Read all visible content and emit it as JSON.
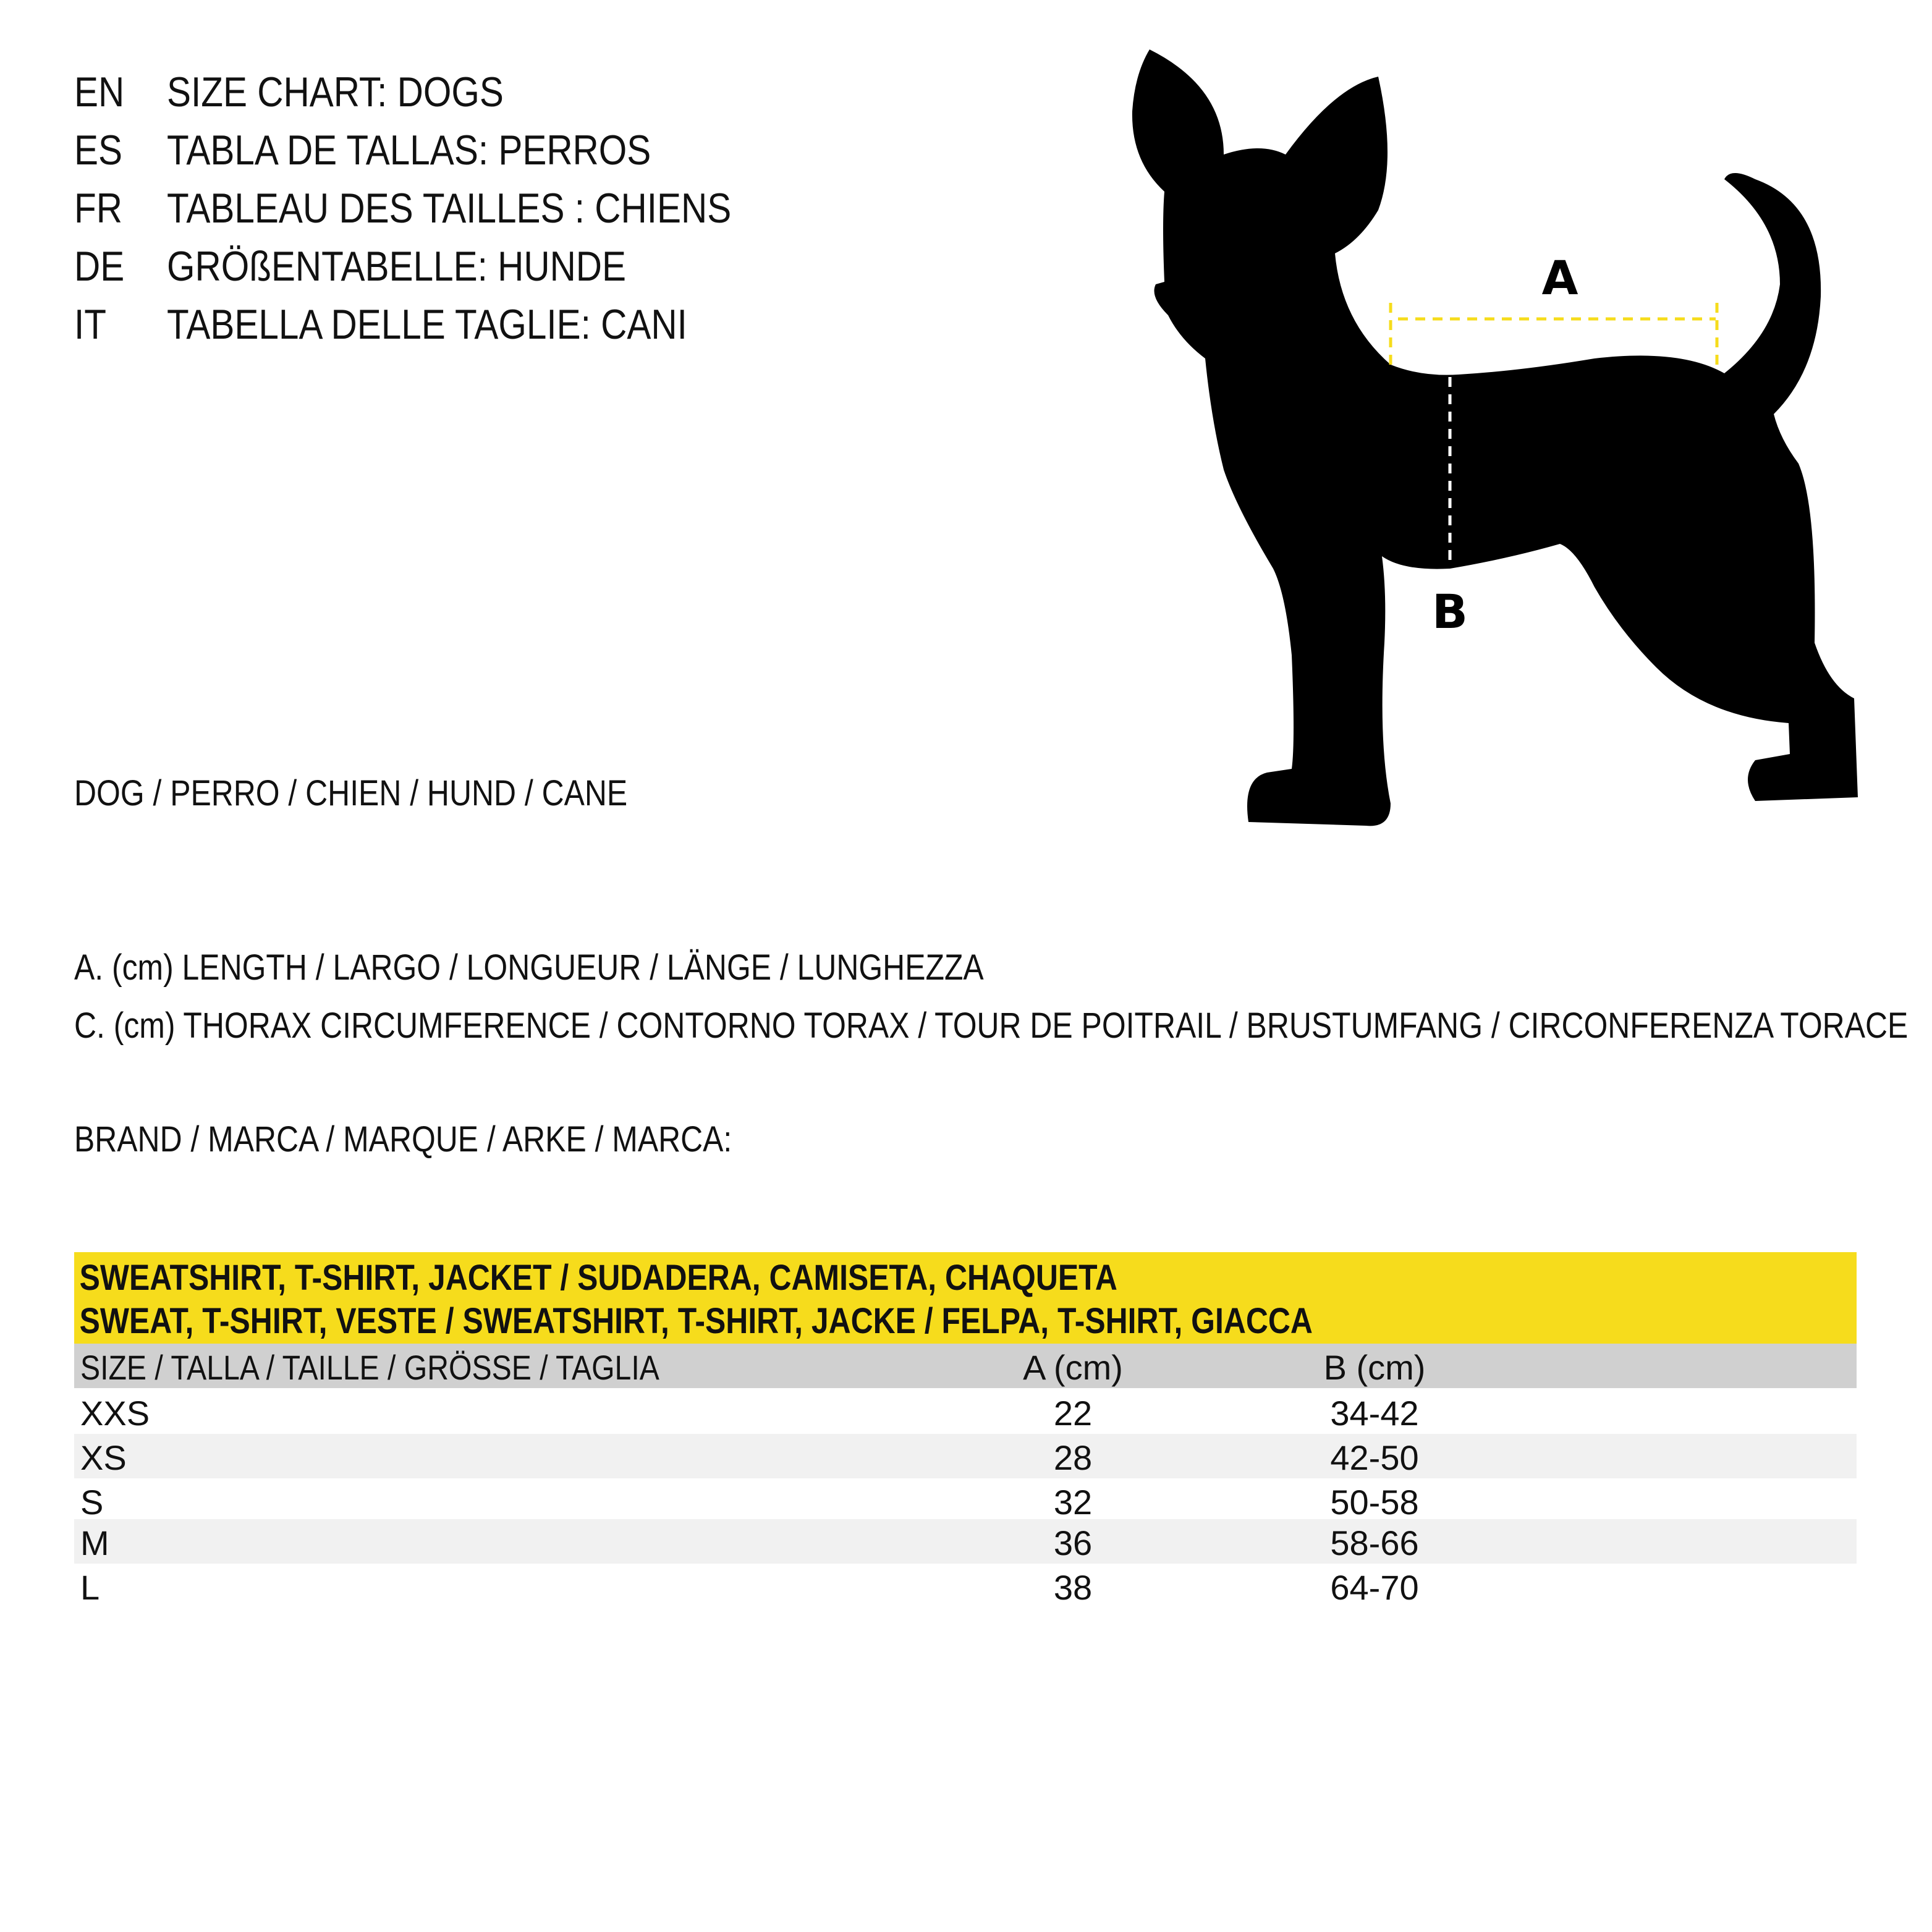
{
  "titles": [
    {
      "lang": "EN",
      "title": "SIZE CHART: DOGS"
    },
    {
      "lang": "ES",
      "title": "TABLA DE TALLAS: PERROS"
    },
    {
      "lang": "FR",
      "title": "TABLEAU DES TAILLES : CHIENS"
    },
    {
      "lang": "DE",
      "title": "GRÖßENTABELLE: HUNDE"
    },
    {
      "lang": "IT",
      "title": "TABELLA DELLE TAGLIE: CANI"
    }
  ],
  "animal_label": "DOG / PERRO / CHIEN / HUND / CANE",
  "legend": {
    "a": "A. (cm) LENGTH / LARGO / LONGUEUR / LÄNGE / LUNGHEZZA",
    "c": "C. (cm) THORAX CIRCUMFERENCE / CONTORNO TORAX / TOUR DE POITRAIL / BRUSTUMFANG / CIRCONFERENZA TORACE"
  },
  "brand_label": "BRAND / MARCA / MARQUE / ARKE / MARCA:",
  "diagram": {
    "label_a": "A",
    "label_b": "B",
    "length_line_color": "#f6dc1c",
    "girth_line_color": "#ffffff"
  },
  "table": {
    "title_line1": "SWEATSHIRT, T-SHIRT, JACKET / SUDADERA, CAMISETA, CHAQUETA",
    "title_line2": "SWEAT, T-SHIRT, VESTE / SWEATSHIRT, T-SHIRT, JACKE / FELPA, T-SHIRT, GIACCA",
    "headers": [
      "SIZE / TALLA / TAILLE / GRÖSSE / TAGLIA",
      "A (cm)",
      "B (cm)"
    ],
    "rows": [
      [
        "XXS",
        "22",
        "34-42"
      ],
      [
        "XS",
        "28",
        "42-50"
      ],
      [
        "S",
        "32",
        "50-58"
      ],
      [
        "M",
        "36",
        "58-66"
      ],
      [
        "L",
        "38",
        "64-70"
      ]
    ],
    "header_color": "#f6dc1c",
    "subheader_color": "#d0d0d0",
    "stripe_color": "#f1f1f1"
  }
}
